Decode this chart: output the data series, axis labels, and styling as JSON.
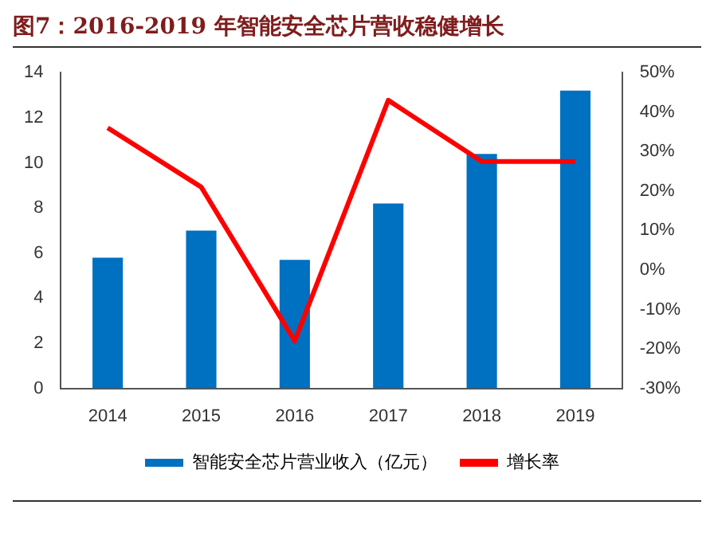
{
  "chart_data": {
    "type": "bar",
    "title": "图7：2016-2019 年智能安全芯片营收稳健增长",
    "categories": [
      "2014",
      "2015",
      "2016",
      "2017",
      "2018",
      "2019"
    ],
    "series": [
      {
        "name": "智能安全芯片营业收入（亿元）",
        "color": "#0070c0",
        "values": [
          5.8,
          7.0,
          5.7,
          8.2,
          10.4,
          13.2
        ]
      },
      {
        "name": "增长率",
        "type": "line",
        "axis": "y2",
        "color": "#ff0000",
        "marker": "none",
        "values": [
          36,
          21,
          -18,
          43,
          27.5,
          27.5
        ]
      }
    ],
    "ylim": [
      0,
      14
    ],
    "yticks": [
      0,
      2,
      4,
      6,
      8,
      10,
      12,
      14
    ],
    "y2lim": [
      -30,
      50
    ],
    "y2ticks": [
      {
        "value": -30,
        "label": "-30%"
      },
      {
        "value": -20,
        "label": "-20%"
      },
      {
        "value": -10,
        "label": "-10%"
      },
      {
        "value": 0,
        "label": "0%"
      },
      {
        "value": 10,
        "label": "10%"
      },
      {
        "value": 20,
        "label": "20%"
      },
      {
        "value": 30,
        "label": "30%"
      },
      {
        "value": 40,
        "label": "40%"
      },
      {
        "value": 50,
        "label": "50%"
      }
    ],
    "grid": false,
    "legend": "bottom"
  }
}
